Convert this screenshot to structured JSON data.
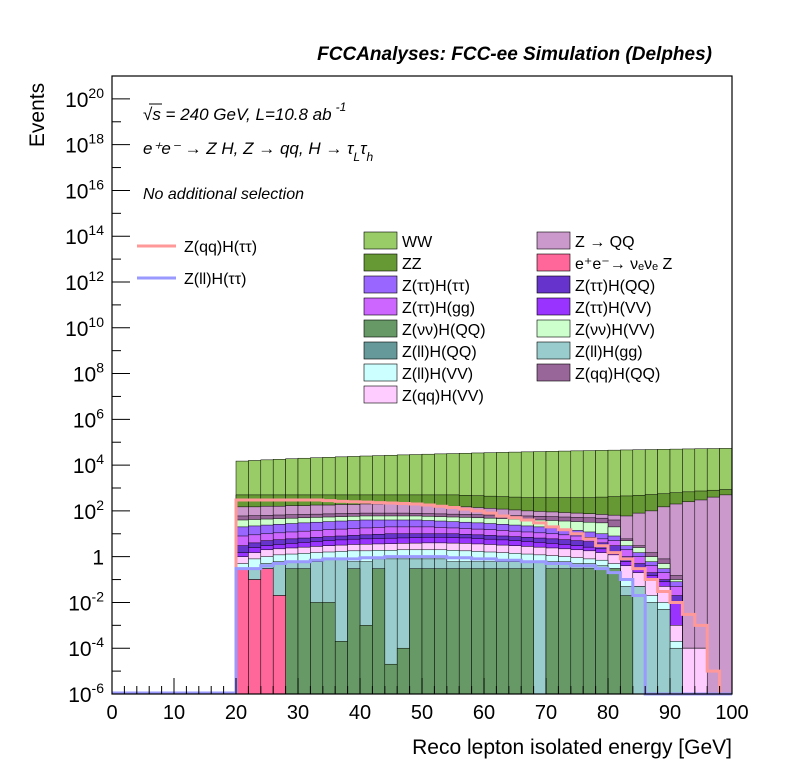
{
  "header": {
    "title": "FCCAnalyses: FCC-ee Simulation (Delphes)"
  },
  "annotations": {
    "energy_line": "√s = 240 GeV, L=10.8 ab",
    "energy_exp": "-1",
    "process_line": "e⁺e⁻ → Z H, Z → qq, H → τ",
    "process_sub_L": "L",
    "process_tau": "τ",
    "process_sub_h": "h",
    "selection": "No additional selection"
  },
  "colors": {
    "WW": "#99cc66",
    "ZZ": "#669933",
    "Z_QQ": "#cc99cc",
    "eeZ": "#ff6699",
    "tautau_tautau": "#9966ff",
    "tautau_QQ": "#6633cc",
    "tautau_gg": "#cc66ff",
    "tautau_VV": "#9933ff",
    "nunu_QQ": "#669966",
    "nunu_VV": "#ccffcc",
    "ll_QQ": "#669999",
    "ll_gg": "#99cccc",
    "ll_VV": "#ccffff",
    "qq_QQ": "#996699",
    "qq_VV": "#ffccff",
    "signal_qq": "#ff9999",
    "signal_ll": "#9999ff"
  },
  "chart_data": {
    "type": "histogram",
    "title": "FCCAnalyses: FCC-ee Simulation (Delphes)",
    "xlabel": "Reco lepton isolated energy [GeV]",
    "ylabel": "Events",
    "xlim": [
      0,
      100
    ],
    "ylim": [
      1e-06,
      1e+21
    ],
    "yscale": "log",
    "x_ticks": [
      "0",
      "10",
      "20",
      "30",
      "40",
      "50",
      "60",
      "70",
      "80",
      "90",
      "100"
    ],
    "y_ticks": [
      {
        "base": "10",
        "exp": "20"
      },
      {
        "base": "10",
        "exp": "18"
      },
      {
        "base": "10",
        "exp": "16"
      },
      {
        "base": "10",
        "exp": "14"
      },
      {
        "base": "10",
        "exp": "12"
      },
      {
        "base": "10",
        "exp": "10"
      },
      {
        "base": "10",
        "exp": "8"
      },
      {
        "base": "10",
        "exp": "6"
      },
      {
        "base": "10",
        "exp": "4"
      },
      {
        "base": "10",
        "exp": "2"
      },
      {
        "base": "1",
        "exp": ""
      },
      {
        "base": "10",
        "exp": "-2"
      },
      {
        "base": "10",
        "exp": "-4"
      },
      {
        "base": "10",
        "exp": "-6"
      }
    ],
    "y_tick_values": [
      1e+20,
      1e+18,
      1e+16,
      100000000000000.0,
      1000000000000.0,
      10000000000.0,
      100000000.0,
      1000000.0,
      10000.0,
      100.0,
      1,
      0.01,
      0.0001,
      1e-06
    ],
    "bin_edges": [
      20,
      22,
      24,
      26,
      28,
      30,
      32,
      34,
      36,
      38,
      40,
      42,
      44,
      46,
      48,
      50,
      52,
      54,
      56,
      58,
      60,
      62,
      64,
      66,
      68,
      70,
      72,
      74,
      76,
      78,
      80,
      82,
      84,
      86,
      88,
      90,
      92,
      94,
      96,
      98,
      100
    ],
    "stack_order_bottom_to_top": [
      "eeZ",
      "nunu_QQ",
      "ll_gg",
      "ll_VV",
      "qq_VV",
      "tautau_VV",
      "tautau_QQ",
      "tautau_gg",
      "tautau_tautau",
      "nunu_VV",
      "qq_QQ",
      "Z_QQ",
      "ZZ",
      "WW"
    ],
    "stack_bounds": {
      "eeZ": [
        0.3,
        0.1,
        0.3,
        0.02,
        0,
        0,
        0,
        0,
        0,
        0,
        0,
        0,
        0,
        0,
        0,
        0,
        0,
        0,
        0,
        0,
        0,
        0,
        0,
        0,
        0,
        0,
        0,
        0,
        0,
        0,
        0,
        0,
        0,
        0,
        0,
        0,
        0,
        0,
        0,
        0
      ],
      "nunu_QQ": [
        0.3,
        0.1,
        0.3,
        0.02,
        0.3,
        0.3,
        0.01,
        0.01,
        0.0002,
        0.3,
        0.001,
        0.3,
        2e-05,
        0.0001,
        0.3,
        0.3,
        0.3,
        0.3,
        0.3,
        0.3,
        0.3,
        0.3,
        0.3,
        0.3,
        1e-06,
        0.3,
        0.3,
        0.3,
        0.3,
        0.3,
        0.3,
        0.02,
        0,
        0,
        0,
        0,
        0,
        0,
        0,
        0
      ],
      "ll_gg": [
        0.3,
        0.3,
        0.5,
        0.6,
        0.6,
        0.6,
        0.6,
        0.8,
        0.8,
        0.6,
        0.6,
        0.8,
        0.8,
        0.8,
        0.8,
        0.8,
        0.8,
        0.6,
        0.6,
        0.6,
        0.6,
        0.6,
        0.6,
        0.6,
        0.6,
        0.6,
        0.6,
        0.5,
        0.5,
        0.4,
        0.3,
        0.05,
        0.05,
        0.01,
        0.005,
        0.0001,
        0,
        0,
        0,
        0
      ],
      "ll_VV": [
        0.5,
        0.8,
        1.0,
        1.2,
        1.3,
        1.4,
        1.5,
        1.6,
        1.7,
        1.8,
        1.8,
        1.9,
        1.9,
        2.0,
        2.0,
        2.0,
        2.0,
        1.9,
        1.8,
        1.7,
        1.6,
        1.5,
        1.4,
        1.3,
        1.2,
        1.1,
        1.0,
        0.9,
        0.8,
        0.7,
        0.5,
        0.1,
        0.05,
        0.02,
        0.01,
        0.0002,
        0,
        0,
        0,
        0
      ],
      "qq_VV": [
        1.0,
        1.5,
        2.0,
        2.2,
        2.4,
        2.6,
        2.8,
        3.0,
        3.2,
        3.4,
        3.5,
        3.6,
        3.7,
        3.8,
        3.9,
        4.0,
        4.0,
        3.9,
        3.8,
        3.6,
        3.4,
        3.2,
        3.0,
        2.8,
        2.6,
        2.4,
        2.2,
        2.0,
        1.8,
        1.5,
        1.2,
        0.4,
        0.2,
        0.1,
        0.05,
        0.001,
        0.0001,
        0.0001,
        0,
        0
      ],
      "tautau_VV": [
        1.5,
        2.5,
        3.0,
        3.4,
        3.8,
        4.2,
        4.6,
        5.0,
        5.4,
        5.8,
        6.0,
        6.2,
        6.4,
        6.6,
        6.8,
        7.0,
        7.0,
        6.8,
        6.6,
        6.2,
        5.8,
        5.4,
        5.0,
        4.6,
        4.2,
        3.8,
        3.4,
        3.0,
        2.6,
        2.2,
        1.6,
        0.6,
        0.3,
        0.15,
        0.08,
        0.01,
        0.0001,
        0.0001,
        0,
        0
      ],
      "tautau_QQ": [
        3,
        4,
        5,
        5.5,
        6,
        6.5,
        7,
        7.5,
        8,
        8.5,
        9,
        9.5,
        10,
        10,
        10,
        10,
        10,
        10,
        9.5,
        9,
        8.5,
        8,
        7.5,
        7,
        6.5,
        6,
        5.5,
        5,
        4.5,
        4,
        3,
        1,
        0.5,
        0.2,
        0.1,
        0.02,
        0.0001,
        0.0001,
        0,
        0
      ],
      "tautau_gg": [
        8,
        9,
        10,
        11,
        12,
        13,
        14,
        15,
        16,
        17,
        18,
        19,
        20,
        20,
        20,
        20,
        19,
        18,
        17,
        16,
        15,
        14,
        13,
        12,
        11,
        10,
        9,
        8,
        7,
        6,
        5,
        2,
        1,
        0.4,
        0.2,
        0.05,
        0.0001,
        0.0001,
        0,
        0
      ],
      "tautau_tautau": [
        20,
        22,
        24,
        26,
        28,
        30,
        32,
        34,
        36,
        38,
        40,
        40,
        40,
        40,
        40,
        38,
        36,
        34,
        32,
        30,
        28,
        26,
        24,
        22,
        20,
        18,
        16,
        14,
        12,
        10,
        8,
        3,
        1.5,
        0.6,
        0.3,
        0.08,
        0.0001,
        0.0001,
        0,
        0
      ],
      "nunu_VV": [
        40,
        42,
        44,
        46,
        48,
        50,
        52,
        54,
        56,
        58,
        60,
        60,
        60,
        60,
        60,
        58,
        56,
        54,
        52,
        50,
        48,
        46,
        44,
        42,
        40,
        38,
        36,
        34,
        32,
        30,
        20,
        5,
        2.5,
        1.0,
        0.5,
        0.1,
        0.0001,
        0.0001,
        0,
        0
      ],
      "qq_QQ": [
        60,
        62,
        64,
        66,
        68,
        70,
        72,
        74,
        76,
        78,
        80,
        80,
        80,
        80,
        78,
        76,
        74,
        72,
        70,
        68,
        66,
        64,
        62,
        60,
        58,
        56,
        54,
        52,
        50,
        48,
        40,
        6,
        3,
        1.5,
        0.8,
        0.15,
        0.0001,
        0.0001,
        0,
        0
      ],
      "Z_QQ": [
        150,
        150,
        160,
        160,
        170,
        170,
        180,
        180,
        190,
        190,
        200,
        200,
        200,
        200,
        190,
        180,
        170,
        160,
        150,
        140,
        130,
        120,
        110,
        100,
        95,
        90,
        85,
        80,
        75,
        70,
        65,
        60,
        80,
        100,
        150,
        200,
        250,
        300,
        400,
        500
      ],
      "ZZ": [
        500,
        500,
        500,
        500,
        500,
        500,
        500,
        500,
        500,
        500,
        500,
        500,
        500,
        500,
        500,
        500,
        500,
        500,
        480,
        460,
        440,
        420,
        400,
        380,
        380,
        380,
        380,
        380,
        380,
        400,
        420,
        450,
        480,
        520,
        560,
        620,
        680,
        740,
        800,
        860
      ],
      "WW": [
        15000,
        16000,
        17000,
        18000,
        19000,
        20000,
        21000,
        22000,
        23000,
        24000,
        25000,
        26000,
        27000,
        28000,
        29000,
        30000,
        31000,
        32000,
        33000,
        34000,
        35000,
        36000,
        37000,
        38000,
        39000,
        40000,
        41000,
        42000,
        43000,
        44000,
        45000,
        46000,
        47000,
        48000,
        49000,
        50000,
        51000,
        52000,
        53000,
        54000
      ]
    },
    "signal_lines": {
      "signal_qq": [
        300,
        300,
        300,
        300,
        300,
        300,
        300,
        280,
        260,
        250,
        240,
        230,
        220,
        210,
        200,
        180,
        160,
        140,
        120,
        100,
        80,
        60,
        50,
        40,
        30,
        20,
        15,
        10,
        6,
        3,
        1.5,
        0.8,
        0.3,
        0.1,
        0.03,
        0.01,
        0.003,
        0.001,
        1e-05,
        1e-06
      ],
      "signal_ll": [
        0.3,
        0.3,
        0.4,
        0.5,
        0.6,
        0.6,
        0.7,
        0.8,
        0.8,
        0.8,
        0.9,
        0.9,
        1.0,
        1.0,
        1.0,
        1.0,
        1.0,
        0.9,
        0.9,
        0.8,
        0.8,
        0.7,
        0.7,
        0.6,
        0.6,
        0.5,
        0.5,
        0.4,
        0.4,
        0.3,
        0.2,
        0.1,
        0.02,
        1e-06,
        1e-06,
        1e-06,
        1e-06,
        1e-06,
        1e-06,
        1e-06
      ]
    },
    "signal_legend": [
      {
        "key": "signal_qq",
        "label": "Z(qq)H(ττ)"
      },
      {
        "key": "signal_ll",
        "label": "Z(ll)H(ττ)"
      }
    ],
    "background_legend": [
      {
        "key": "WW",
        "label": "WW"
      },
      {
        "key": "Z_QQ",
        "label": "Z → QQ"
      },
      {
        "key": "ZZ",
        "label": "ZZ"
      },
      {
        "key": "eeZ",
        "label": "e⁺e⁻→ νₑνₑ Z"
      },
      {
        "key": "tautau_tautau",
        "label": "Z(ττ)H(ττ)"
      },
      {
        "key": "tautau_QQ",
        "label": "Z(ττ)H(QQ)"
      },
      {
        "key": "tautau_gg",
        "label": "Z(ττ)H(gg)"
      },
      {
        "key": "tautau_VV",
        "label": "Z(ττ)H(VV)"
      },
      {
        "key": "nunu_QQ",
        "label": "Z(νν)H(QQ)"
      },
      {
        "key": "nunu_VV",
        "label": "Z(νν)H(VV)"
      },
      {
        "key": "ll_QQ",
        "label": "Z(ll)H(QQ)"
      },
      {
        "key": "ll_gg",
        "label": "Z(ll)H(gg)"
      },
      {
        "key": "ll_VV",
        "label": "Z(ll)H(VV)"
      },
      {
        "key": "qq_QQ",
        "label": "Z(qq)H(QQ)"
      },
      {
        "key": "qq_VV",
        "label": "Z(qq)H(VV)"
      }
    ],
    "grid": false,
    "legend_position": "top-center"
  }
}
